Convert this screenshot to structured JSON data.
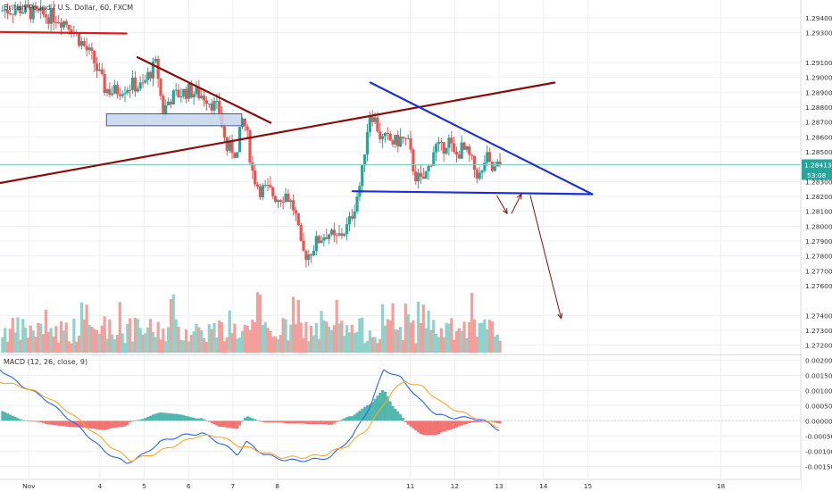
{
  "chart_data": {
    "type": "candlestick",
    "symbol_title": "British Pound / U.S. Dollar, 60, FXCM",
    "colors": {
      "up": "#26a69a",
      "down": "#ef5350",
      "vol_up": "#8ed3cb",
      "vol_down": "#f3a09c",
      "trend_dark": "#8b0a0a",
      "support_red": "#e01818",
      "triangle_blue": "#1f2fd6",
      "zone_fill": "#c5d6f0",
      "zone_stroke": "#4a5a8a",
      "price_line": "#80cbc4",
      "macd_line": "#2962ff",
      "signal_line": "#ffa726",
      "grid": "#eef0f4"
    },
    "price_axis": {
      "min": 1.2715,
      "max": 1.2952,
      "ticks": [
        "1.29400",
        "1.29300",
        "1.29100",
        "1.29000",
        "1.28900",
        "1.28800",
        "1.28700",
        "1.28600",
        "1.28500",
        "1.28300",
        "1.28200",
        "1.28100",
        "1.28000",
        "1.27900",
        "1.27800",
        "1.27700",
        "1.27600",
        "1.27400",
        "1.27300",
        "1.27200"
      ]
    },
    "current_price": {
      "value": 1.28413,
      "label": "1.28413",
      "countdown": "53:08"
    },
    "x_axis": {
      "labels": [
        {
          "text": "Nov",
          "day": 2.4
        },
        {
          "text": "4",
          "day": 4
        },
        {
          "text": "5",
          "day": 5
        },
        {
          "text": "6",
          "day": 6
        },
        {
          "text": "7",
          "day": 7
        },
        {
          "text": "8",
          "day": 8
        },
        {
          "text": "11",
          "day": 11
        },
        {
          "text": "12",
          "day": 12
        },
        {
          "text": "13",
          "day": 13
        },
        {
          "text": "14",
          "day": 14
        },
        {
          "text": "15",
          "day": 15
        },
        {
          "text": "18",
          "day": 18
        }
      ],
      "range": [
        1.75,
        19.8
      ]
    },
    "price_path": [
      [
        1.75,
        1.2945
      ],
      [
        2.2,
        1.2946
      ],
      [
        2.6,
        1.2942
      ],
      [
        3.0,
        1.2941
      ],
      [
        3.3,
        1.2936
      ],
      [
        3.55,
        1.2925
      ],
      [
        3.85,
        1.2912
      ],
      [
        4.1,
        1.2893
      ],
      [
        4.3,
        1.289
      ],
      [
        4.5,
        1.2893
      ],
      [
        4.75,
        1.2895
      ],
      [
        4.95,
        1.2893
      ],
      [
        5.12,
        1.2903
      ],
      [
        5.28,
        1.2909
      ],
      [
        5.42,
        1.2876
      ],
      [
        5.58,
        1.2886
      ],
      [
        5.8,
        1.2889
      ],
      [
        6.0,
        1.2891
      ],
      [
        6.2,
        1.2889
      ],
      [
        6.4,
        1.2887
      ],
      [
        6.55,
        1.2882
      ],
      [
        6.7,
        1.2877
      ],
      [
        6.85,
        1.2852
      ],
      [
        7.0,
        1.2852
      ],
      [
        7.1,
        1.2848
      ],
      [
        7.2,
        1.2872
      ],
      [
        7.3,
        1.2865
      ],
      [
        7.45,
        1.2835
      ],
      [
        7.6,
        1.2825
      ],
      [
        7.8,
        1.2824
      ],
      [
        8.0,
        1.2819
      ],
      [
        8.2,
        1.2822
      ],
      [
        8.4,
        1.281
      ],
      [
        8.55,
        1.2782
      ],
      [
        8.7,
        1.2781
      ],
      [
        8.85,
        1.2788
      ],
      [
        9.0,
        1.2793
      ],
      [
        9.15,
        1.2796
      ],
      [
        9.3,
        1.279
      ],
      [
        9.45,
        1.2795
      ],
      [
        9.6,
        1.28
      ],
      [
        9.75,
        1.2815
      ],
      [
        9.9,
        1.2832
      ],
      [
        10.0,
        1.286
      ],
      [
        10.1,
        1.2878
      ],
      [
        10.22,
        1.287
      ],
      [
        10.35,
        1.2858
      ],
      [
        10.5,
        1.2858
      ],
      [
        10.65,
        1.2856
      ],
      [
        10.8,
        1.2859
      ],
      [
        10.95,
        1.2855
      ],
      [
        11.1,
        1.2835
      ],
      [
        11.25,
        1.2829
      ],
      [
        11.4,
        1.2838
      ],
      [
        11.55,
        1.2854
      ],
      [
        11.7,
        1.2851
      ],
      [
        11.85,
        1.2859
      ],
      [
        12.0,
        1.2846
      ],
      [
        12.15,
        1.2852
      ],
      [
        12.3,
        1.2848
      ],
      [
        12.45,
        1.2838
      ],
      [
        12.6,
        1.2832
      ],
      [
        12.7,
        1.2848
      ],
      [
        12.82,
        1.2837
      ],
      [
        12.92,
        1.2838
      ],
      [
        13.0,
        1.2841
      ]
    ],
    "macd": {
      "label": "MACD (12, 26, close, 9)",
      "range": [
        -0.0019,
        0.0021
      ],
      "ticks": [
        "0.00200",
        "0.00150",
        "0.00100",
        "0.00050",
        "0.00000",
        "-0.00050",
        "-0.00100",
        "-0.00150"
      ],
      "macd_path": [
        [
          1.75,
          0.0017
        ],
        [
          2.2,
          0.0012
        ],
        [
          2.7,
          0.0008
        ],
        [
          3.2,
          0.0002
        ],
        [
          3.6,
          -0.0003
        ],
        [
          4.1,
          -0.001
        ],
        [
          4.6,
          -0.0014
        ],
        [
          5.0,
          -0.0011
        ],
        [
          5.35,
          -0.0007
        ],
        [
          5.8,
          -0.0005
        ],
        [
          6.3,
          -0.0004
        ],
        [
          6.8,
          -0.0008
        ],
        [
          7.1,
          -0.0011
        ],
        [
          7.3,
          -0.0007
        ],
        [
          7.7,
          -0.0011
        ],
        [
          8.2,
          -0.0013
        ],
        [
          8.7,
          -0.0013
        ],
        [
          9.2,
          -0.0012
        ],
        [
          9.7,
          -0.0005
        ],
        [
          10.1,
          0.0005
        ],
        [
          10.4,
          0.0017
        ],
        [
          10.8,
          0.0014
        ],
        [
          11.2,
          0.0007
        ],
        [
          11.6,
          0.0002
        ],
        [
          12.0,
          0.0001
        ],
        [
          12.4,
          0.0001
        ],
        [
          12.8,
          -0.0001
        ],
        [
          13.0,
          -0.0003
        ]
      ],
      "signal_path": [
        [
          1.75,
          0.0013
        ],
        [
          2.3,
          0.0011
        ],
        [
          2.8,
          0.0008
        ],
        [
          3.3,
          0.0003
        ],
        [
          3.8,
          -0.0003
        ],
        [
          4.3,
          -0.0009
        ],
        [
          4.7,
          -0.0013
        ],
        [
          5.2,
          -0.0011
        ],
        [
          5.7,
          -0.0008
        ],
        [
          6.2,
          -0.0005
        ],
        [
          6.7,
          -0.0005
        ],
        [
          7.1,
          -0.0008
        ],
        [
          7.6,
          -0.001
        ],
        [
          8.1,
          -0.0012
        ],
        [
          8.6,
          -0.0012
        ],
        [
          9.1,
          -0.0011
        ],
        [
          9.6,
          -0.0008
        ],
        [
          10.0,
          -0.0003
        ],
        [
          10.3,
          0.0003
        ],
        [
          10.6,
          0.001
        ],
        [
          10.9,
          0.0013
        ],
        [
          11.3,
          0.0011
        ],
        [
          11.7,
          0.0006
        ],
        [
          12.1,
          0.0003
        ],
        [
          12.5,
          0.0001
        ],
        [
          13.0,
          -0.0002
        ]
      ]
    },
    "drawings": {
      "red_support": [
        [
          1.75,
          1.29305
        ],
        [
          4.6,
          1.29295
        ]
      ],
      "dark_downtrend": [
        [
          4.85,
          1.29135
        ],
        [
          7.85,
          1.28695
        ]
      ],
      "dark_uptrend": [
        [
          1.75,
          1.2829
        ],
        [
          14.25,
          1.28965
        ]
      ],
      "blue_upper": [
        [
          10.1,
          1.28965
        ],
        [
          15.1,
          1.28215
        ]
      ],
      "blue_lower": [
        [
          9.7,
          1.28235
        ],
        [
          15.1,
          1.28215
        ]
      ],
      "zone": {
        "x1": 4.15,
        "x2": 7.2,
        "y_top": 1.28755,
        "y_bot": 1.28675
      },
      "arrows": [
        [
          [
            12.95,
            1.28205
          ],
          [
            13.18,
            1.28085
          ]
        ],
        [
          [
            13.28,
            1.28085
          ],
          [
            13.5,
            1.28215
          ]
        ],
        [
          [
            13.7,
            1.2821
          ],
          [
            14.4,
            1.2738
          ]
        ]
      ]
    }
  }
}
